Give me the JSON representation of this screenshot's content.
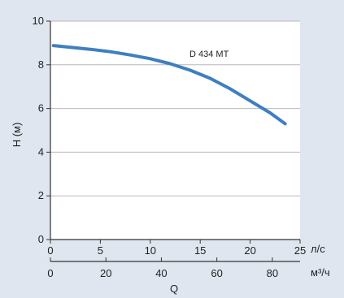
{
  "chart_data": {
    "type": "line",
    "ylabel": "H (м)",
    "xlabel": "Q",
    "x_unit_top": "л/с",
    "x_unit_bottom": "м³/ч",
    "xlim": [
      0,
      25
    ],
    "ylim": [
      0,
      10
    ],
    "x_ticks": [
      "0",
      "5",
      "10",
      "15",
      "20",
      "25"
    ],
    "y_ticks": [
      "0",
      "2",
      "4",
      "6",
      "8",
      "10"
    ],
    "secondary_axis": {
      "ticks": [
        "0",
        "20",
        "40",
        "60",
        "80"
      ],
      "tick_values": [
        0,
        20,
        40,
        60,
        80
      ],
      "lim": [
        0,
        90
      ]
    },
    "grid": true,
    "colors": {
      "curve": "#3f7fc1",
      "grid": "#b8b8b8",
      "background": "#dfe6ef",
      "plot_bg": "#ffffff"
    },
    "series": [
      {
        "name": "D 434 MT",
        "x": [
          0.3,
          2,
          4,
          6,
          8,
          10,
          12,
          14,
          16,
          18,
          20,
          22,
          23.5
        ],
        "y": [
          8.88,
          8.8,
          8.71,
          8.6,
          8.45,
          8.28,
          8.05,
          7.75,
          7.38,
          6.9,
          6.35,
          5.8,
          5.3
        ]
      }
    ]
  }
}
